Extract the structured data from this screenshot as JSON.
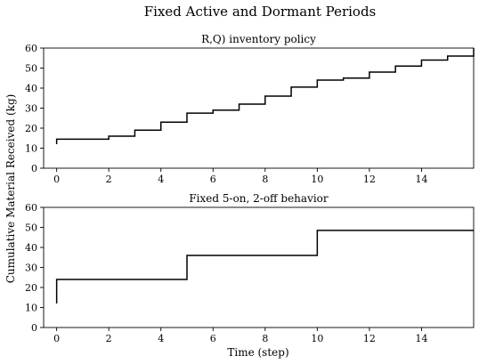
{
  "figure": {
    "title": "Fixed Active and Dormant Periods",
    "ylabel": "Cumulative Material Received (kg)",
    "xlabel": "Time (step)"
  },
  "chart_data": [
    {
      "type": "line",
      "style": "step",
      "title": "R,Q) inventory policy",
      "xlabel": "",
      "ylabel": "Cumulative Material Received (kg)",
      "xlim": [
        -0.5,
        16
      ],
      "ylim": [
        0,
        60
      ],
      "xticks": [
        0,
        2,
        4,
        6,
        8,
        10,
        12,
        14
      ],
      "yticks": [
        0,
        10,
        20,
        30,
        40,
        50,
        60
      ],
      "grid": false,
      "line_color": "#000000",
      "series": [
        {
          "x": [
            0,
            0,
            2,
            3,
            4,
            5,
            6,
            7,
            8,
            9,
            10,
            11,
            12,
            13,
            14,
            15,
            16
          ],
          "y": [
            12,
            14.5,
            16,
            19,
            23,
            27.5,
            29,
            32,
            36,
            40.5,
            44,
            45,
            48,
            51,
            54,
            56,
            60
          ]
        }
      ]
    },
    {
      "type": "line",
      "style": "step",
      "title": "Fixed 5-on, 2-off behavior",
      "xlabel": "Time (step)",
      "ylabel": "",
      "xlim": [
        -0.5,
        16
      ],
      "ylim": [
        0,
        60
      ],
      "xticks": [
        0,
        2,
        4,
        6,
        8,
        10,
        12,
        14
      ],
      "yticks": [
        0,
        10,
        20,
        30,
        40,
        50,
        60
      ],
      "grid": false,
      "line_color": "#000000",
      "series": [
        {
          "x": [
            0,
            0,
            5,
            10,
            16
          ],
          "y": [
            12,
            24,
            36,
            48.5,
            48.5
          ]
        }
      ]
    }
  ]
}
